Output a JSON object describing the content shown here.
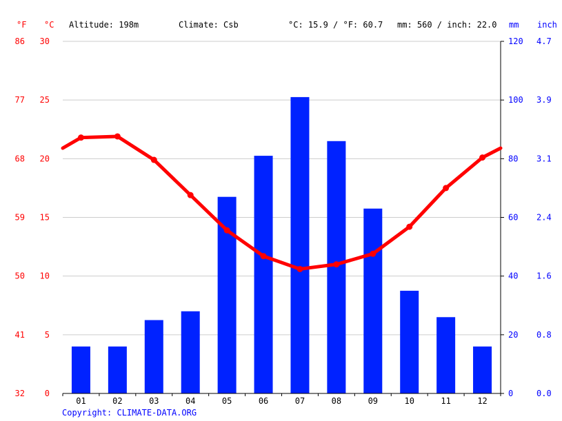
{
  "header": {
    "unit_f": "°F",
    "unit_c": "°C",
    "altitude": "Altitude: 198m",
    "climate": "Climate: Csb",
    "temp_avg": "°C: 15.9 / °F: 60.7",
    "precip_total": "mm: 560 / inch: 22.0",
    "unit_mm": "mm",
    "unit_inch": "inch"
  },
  "footer": {
    "copyright": "Copyright: CLIMATE-DATA.ORG"
  },
  "colors": {
    "temperature": "#ff0000",
    "precipitation": "#0022ff",
    "grid": "#cccccc",
    "red_text": "#ff0000",
    "blue_text": "#0000ff"
  },
  "chart_data": {
    "type": "bar+line",
    "categories": [
      "01",
      "02",
      "03",
      "04",
      "05",
      "06",
      "07",
      "08",
      "09",
      "10",
      "11",
      "12"
    ],
    "series": [
      {
        "kind": "bar",
        "axis": "right",
        "values": [
          16,
          16,
          25,
          28,
          67,
          81,
          101,
          86,
          63,
          35,
          26,
          16
        ]
      },
      {
        "kind": "line",
        "axis": "left",
        "values": [
          21.8,
          21.9,
          19.9,
          16.9,
          13.9,
          11.7,
          10.6,
          11.0,
          11.9,
          14.2,
          17.5,
          20.1
        ]
      }
    ],
    "line_edge_values": {
      "start": 20.9,
      "end": 20.9
    },
    "y_left_c": {
      "ticks": [
        0,
        5,
        10,
        15,
        20,
        25,
        30
      ],
      "lim": [
        0,
        30
      ]
    },
    "y_left_f": {
      "ticks": [
        "32",
        "41",
        "50",
        "59",
        "68",
        "77",
        "86"
      ]
    },
    "y_right_mm": {
      "ticks": [
        0,
        20,
        40,
        60,
        80,
        100,
        120
      ],
      "lim": [
        0,
        120
      ]
    },
    "y_right_inch": {
      "ticks": [
        "0.0",
        "0.8",
        "1.6",
        "2.4",
        "3.1",
        "3.9",
        "4.7"
      ]
    },
    "grid": true
  }
}
